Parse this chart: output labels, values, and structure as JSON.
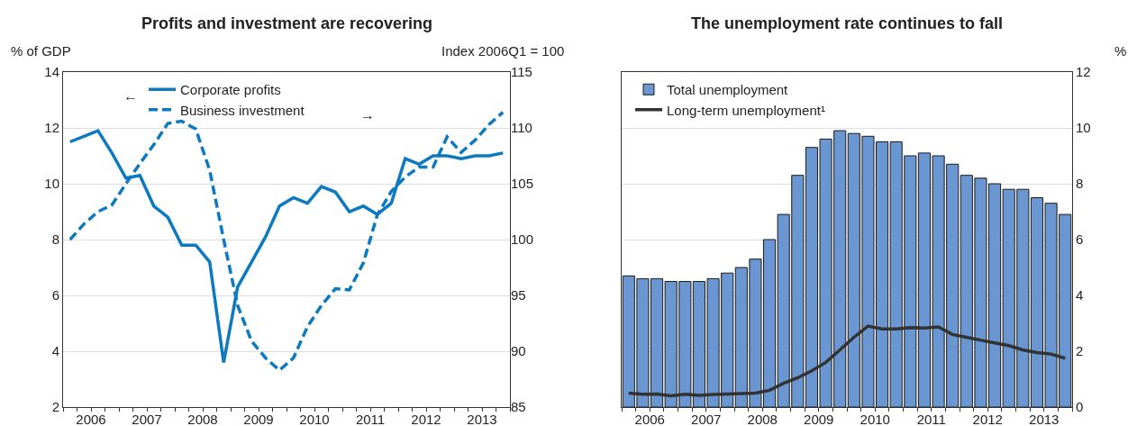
{
  "chart_data": [
    {
      "type": "line",
      "title": "Profits and investment are recovering",
      "ylabel": "% of GDP",
      "y2label": "Index 2006Q1 = 100",
      "x": [
        2006.125,
        2006.375,
        2006.625,
        2006.875,
        2007.125,
        2007.375,
        2007.625,
        2007.875,
        2008.125,
        2008.375,
        2008.625,
        2008.875,
        2009.125,
        2009.375,
        2009.625,
        2009.875,
        2010.125,
        2010.375,
        2010.625,
        2010.875,
        2011.125,
        2011.375,
        2011.625,
        2011.875,
        2012.125,
        2012.375,
        2012.625,
        2012.875,
        2013.125,
        2013.375,
        2013.625,
        2013.875
      ],
      "series": [
        {
          "name": "Corporate profits",
          "color": "#0c79c0",
          "line_style": "solid",
          "values": [
            11.5,
            11.7,
            11.9,
            11.1,
            10.2,
            10.3,
            9.2,
            8.8,
            7.8,
            7.8,
            7.2,
            3.6,
            6.3,
            7.2,
            8.1,
            9.2,
            9.5,
            9.3,
            9.9,
            9.7,
            9.0,
            9.2,
            8.9,
            9.3,
            10.9,
            10.7,
            11.0,
            11.0,
            10.9,
            11.0,
            11.0,
            11.1
          ]
        },
        {
          "name": "Business investment",
          "color": "#0c79c0",
          "line_style": "dashed",
          "axis": "y2",
          "values": [
            100.0,
            101.4,
            102.5,
            103.1,
            105.0,
            106.8,
            108.5,
            110.4,
            110.6,
            109.9,
            106.2,
            100.0,
            94.1,
            90.9,
            89.4,
            88.3,
            89.4,
            92.2,
            94.1,
            95.6,
            95.5,
            97.9,
            102.2,
            104.3,
            105.6,
            106.5,
            106.5,
            109.2,
            107.8,
            108.9,
            110.3,
            111.4
          ]
        }
      ],
      "annotations": [
        "←",
        "→"
      ],
      "xlim": [
        2006,
        2014
      ],
      "xticks": [
        {
          "value": 2006.5,
          "label": "2006"
        },
        {
          "value": 2007.5,
          "label": "2007"
        },
        {
          "value": 2008.5,
          "label": "2008"
        },
        {
          "value": 2009.5,
          "label": "2009"
        },
        {
          "value": 2010.5,
          "label": "2010"
        },
        {
          "value": 2011.5,
          "label": "2011"
        },
        {
          "value": 2012.5,
          "label": "2012"
        },
        {
          "value": 2013.5,
          "label": "2013"
        }
      ],
      "ylim": [
        2,
        14
      ],
      "yticks": [
        2,
        4,
        6,
        8,
        10,
        12,
        14
      ],
      "y2lim": [
        85,
        115
      ],
      "y2ticks": [
        85,
        90,
        95,
        100,
        105,
        110,
        115
      ],
      "grid": "y",
      "legend": "top",
      "marker": "none"
    },
    {
      "type": "bar",
      "title": "The unemployment rate continues to fall",
      "ylabel": "%",
      "x": [
        2006.125,
        2006.375,
        2006.625,
        2006.875,
        2007.125,
        2007.375,
        2007.625,
        2007.875,
        2008.125,
        2008.375,
        2008.625,
        2008.875,
        2009.125,
        2009.375,
        2009.625,
        2009.875,
        2010.125,
        2010.375,
        2010.625,
        2010.875,
        2011.125,
        2011.375,
        2011.625,
        2011.875,
        2012.125,
        2012.375,
        2012.625,
        2012.875,
        2013.125,
        2013.375,
        2013.625,
        2013.875
      ],
      "series": [
        {
          "name": "Total unemployment",
          "color": "#6a96d1",
          "values": [
            4.7,
            4.6,
            4.6,
            4.5,
            4.5,
            4.5,
            4.6,
            4.8,
            5.0,
            5.3,
            6.0,
            6.9,
            8.3,
            9.3,
            9.6,
            9.9,
            9.8,
            9.7,
            9.5,
            9.5,
            9.0,
            9.1,
            9.0,
            8.7,
            8.3,
            8.2,
            8.0,
            7.8,
            7.8,
            7.5,
            7.3,
            6.9
          ]
        },
        {
          "name": "Long-term unemployment¹",
          "type": "line",
          "color": "#333333",
          "values": [
            0.5,
            0.46,
            0.47,
            0.4,
            0.46,
            0.42,
            0.45,
            0.47,
            0.48,
            0.5,
            0.6,
            0.85,
            1.05,
            1.3,
            1.6,
            2.05,
            2.5,
            2.9,
            2.8,
            2.8,
            2.85,
            2.83,
            2.87,
            2.6,
            2.5,
            2.4,
            2.3,
            2.2,
            2.05,
            1.95,
            1.9,
            1.75
          ]
        }
      ],
      "xlim": [
        2006,
        2014
      ],
      "xticks": [
        {
          "value": 2006.5,
          "label": "2006"
        },
        {
          "value": 2007.5,
          "label": "2007"
        },
        {
          "value": 2008.5,
          "label": "2008"
        },
        {
          "value": 2009.5,
          "label": "2009"
        },
        {
          "value": 2010.5,
          "label": "2010"
        },
        {
          "value": 2011.5,
          "label": "2011"
        },
        {
          "value": 2012.5,
          "label": "2012"
        },
        {
          "value": 2013.5,
          "label": "2013"
        }
      ],
      "ylim": [
        0,
        12
      ],
      "yticks": [
        0,
        2,
        4,
        6,
        8,
        10,
        12
      ],
      "grid": "y",
      "legend": "top left"
    }
  ]
}
